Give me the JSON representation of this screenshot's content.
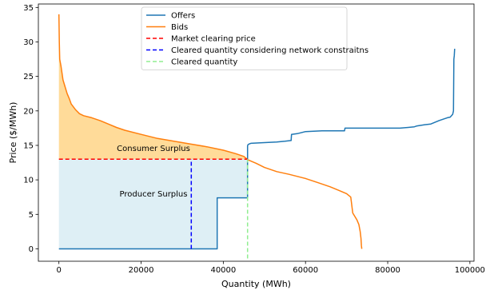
{
  "chart_data": {
    "type": "line",
    "title": "",
    "xlabel": "Quantity (MWh)",
    "ylabel": "Price ($/MWh)",
    "xlim": [
      -5000,
      101000
    ],
    "ylim": [
      -1.8,
      35.5
    ],
    "xticks": [
      0,
      20000,
      40000,
      60000,
      80000,
      100000
    ],
    "xtick_labels": [
      "0",
      "20000",
      "40000",
      "60000",
      "80000",
      "100000"
    ],
    "yticks": [
      0,
      5,
      10,
      15,
      20,
      25,
      30,
      35
    ],
    "ytick_labels": [
      "0",
      "5",
      "10",
      "15",
      "20",
      "25",
      "30",
      "35"
    ],
    "grid": false,
    "legend_position": "top-center",
    "series": [
      {
        "name": "Offers",
        "color": "#1f77b4",
        "x": [
          0,
          38500,
          38500,
          43500,
          45900,
          45900,
          46000,
          46300,
          46700,
          50000,
          53000,
          55000,
          56500,
          56600,
          58000,
          60000,
          64000,
          69500,
          69600,
          75000,
          83000,
          85000,
          86500,
          87000,
          89000,
          90500,
          92500,
          93500,
          94500,
          95200,
          95800,
          96000,
          96100,
          96200,
          96300
        ],
        "y": [
          0,
          0,
          7.4,
          7.4,
          7.4,
          14.9,
          15.1,
          15.2,
          15.3,
          15.4,
          15.5,
          15.6,
          15.7,
          16.6,
          16.7,
          17.0,
          17.1,
          17.1,
          17.5,
          17.5,
          17.5,
          17.6,
          17.7,
          17.8,
          18.0,
          18.1,
          18.6,
          18.8,
          19.0,
          19.1,
          19.5,
          20.0,
          27.5,
          28.0,
          29.0
        ]
      },
      {
        "name": "Bids",
        "color": "#ff7f0e",
        "x": [
          0,
          100,
          200,
          500,
          1000,
          1500,
          2000,
          2500,
          3000,
          4000,
          5000,
          6000,
          8000,
          10000,
          12000,
          14000,
          16000,
          20000,
          24000,
          28000,
          32000,
          36000,
          40000,
          43000,
          45000,
          46000,
          48000,
          50000,
          53000,
          56000,
          60000,
          63000,
          66000,
          68000,
          70000,
          71000,
          71500,
          72500,
          73000,
          73300,
          73500,
          73600,
          73700
        ],
        "y": [
          34,
          30,
          27.5,
          26.5,
          24.5,
          23.5,
          22.5,
          21.8,
          21,
          20.2,
          19.6,
          19.3,
          19.0,
          18.6,
          18.1,
          17.6,
          17.2,
          16.6,
          16.0,
          15.6,
          15.2,
          14.8,
          14.3,
          13.8,
          13.4,
          12.9,
          12.4,
          11.8,
          11.2,
          10.8,
          10.2,
          9.6,
          9.0,
          8.5,
          8.0,
          7.5,
          5.2,
          4.2,
          3.5,
          2.5,
          1.5,
          0.5,
          0
        ]
      },
      {
        "name": "Market clearing price",
        "color": "#ff0000",
        "style": "dashed",
        "x": [
          0,
          45900
        ],
        "y": [
          13.0,
          13.0
        ]
      },
      {
        "name": "Cleared quantity considering network constraitns",
        "color": "#0000ff",
        "style": "dashed",
        "x": [
          32200,
          32200
        ],
        "y": [
          0,
          13.0
        ]
      },
      {
        "name": "Cleared quantity",
        "color": "#90ee90",
        "style": "dashed",
        "x": [
          45900,
          45900
        ],
        "y": [
          -1.4,
          13.0
        ]
      }
    ],
    "areas": [
      {
        "label": "Consumer Surplus",
        "color": "#ffa500",
        "opacity": 0.4,
        "label_at": [
          23000,
          14.2
        ]
      },
      {
        "label": "Producer Surplus",
        "color": "#add8e6",
        "opacity": 0.4,
        "label_at": [
          23000,
          7.6
        ]
      }
    ]
  }
}
